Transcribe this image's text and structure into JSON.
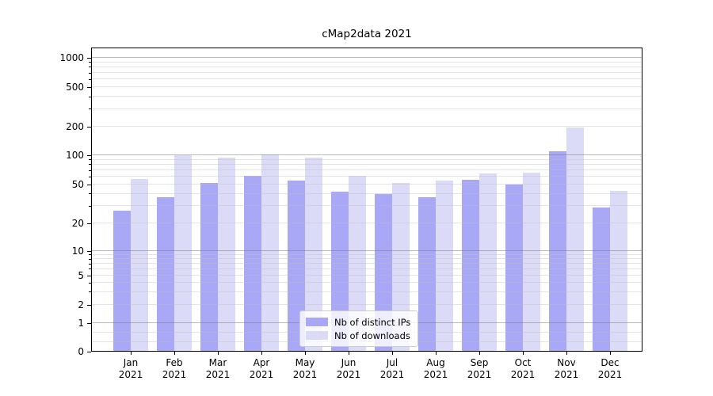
{
  "title": "cMap2data 2021",
  "chart_data": {
    "type": "bar",
    "title": "cMap2data 2021",
    "yscale": "symlog",
    "grid": true,
    "legend_position": "lower center",
    "ylim": [
      0,
      1200
    ],
    "y_ticks": [
      0,
      1,
      2,
      5,
      10,
      20,
      50,
      100,
      200,
      500,
      1000
    ],
    "categories": [
      "Jan 2021",
      "Feb 2021",
      "Mar 2021",
      "Apr 2021",
      "May 2021",
      "Jun 2021",
      "Jul 2021",
      "Aug 2021",
      "Sep 2021",
      "Oct 2021",
      "Nov 2021",
      "Dec 2021"
    ],
    "x_tick_months": [
      "Jan",
      "Feb",
      "Mar",
      "Apr",
      "May",
      "Jun",
      "Jul",
      "Aug",
      "Sep",
      "Oct",
      "Nov",
      "Dec"
    ],
    "x_tick_year": "2021",
    "series": [
      {
        "name": "Nb of distinct IPs",
        "color": "#a8a8f7",
        "values": [
          27,
          37,
          52,
          62,
          55,
          42,
          40,
          37,
          56,
          50,
          110,
          29
        ]
      },
      {
        "name": "Nb of downloads",
        "color": "#dbdbf8",
        "values": [
          57,
          101,
          95,
          103,
          95,
          61,
          52,
          55,
          65,
          66,
          195,
          43
        ]
      }
    ],
    "colors": {
      "major_grid": "#b0b0b0",
      "minor_grid": "#e7e7e7",
      "spine": "#000000",
      "background": "#ffffff"
    }
  }
}
